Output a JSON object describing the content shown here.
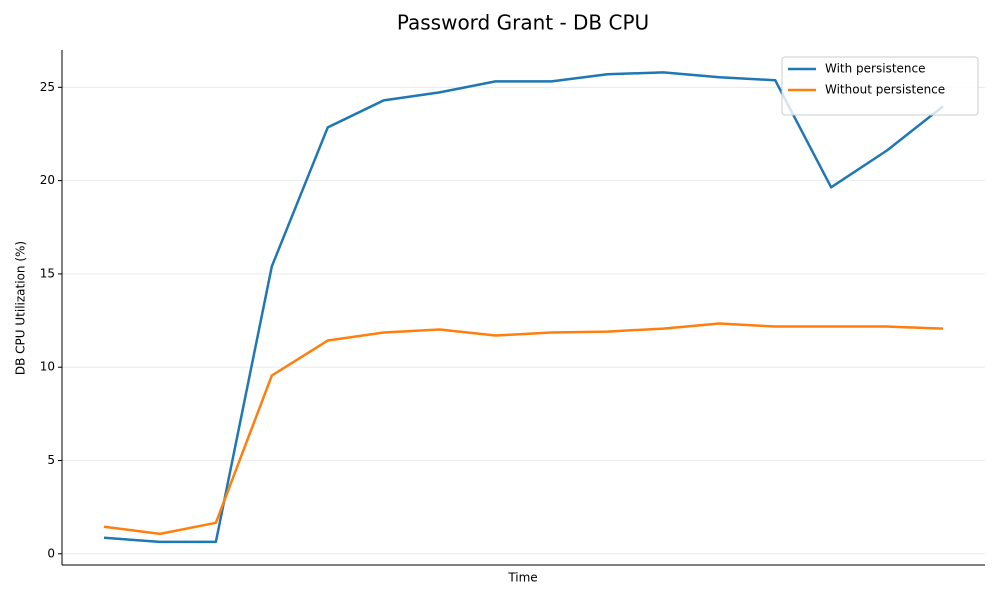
{
  "chart_data": {
    "type": "line",
    "title": "Password Grant - DB CPU",
    "x_label": "Time",
    "y_label": "DB CPU Utilization (%)",
    "categories": [
      null,
      null,
      null,
      null,
      null,
      null,
      null,
      null,
      null,
      null,
      null,
      null,
      null,
      null,
      null,
      null
    ],
    "series": [
      {
        "name": "With persistence",
        "color": "#1f77b4",
        "values": [
          0.86,
          0.64,
          0.64,
          15.4,
          22.85,
          24.3,
          24.73,
          25.32,
          25.32,
          25.7,
          25.8,
          25.54,
          25.38,
          19.64,
          21.62,
          23.98
        ]
      },
      {
        "name": "Without persistence",
        "color": "#ff7f0e",
        "values": [
          1.45,
          1.07,
          1.66,
          9.55,
          11.43,
          11.86,
          12.02,
          11.7,
          11.86,
          11.91,
          12.07,
          12.34,
          12.18,
          12.18,
          12.18,
          12.07
        ]
      }
    ],
    "ylim": [
      -0.6,
      27.0
    ],
    "yticks": [
      0,
      5,
      10,
      15,
      20,
      25
    ],
    "grid": true,
    "legend": "upper right"
  }
}
